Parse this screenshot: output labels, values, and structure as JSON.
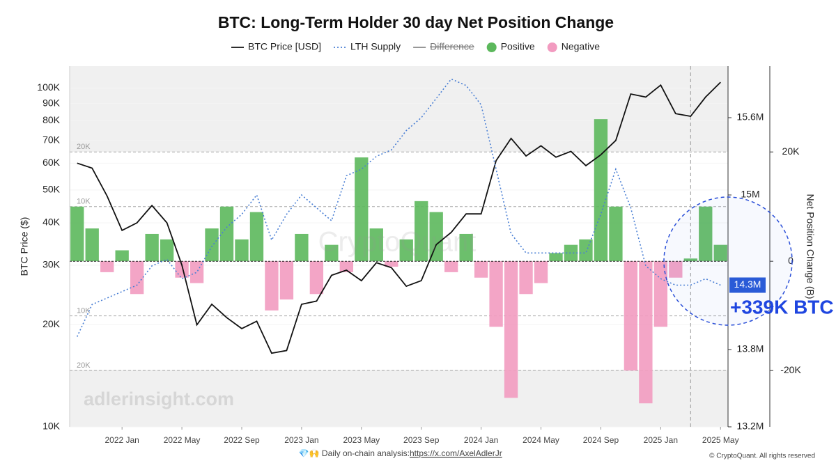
{
  "chart_data": {
    "type": "combo",
    "title": "BTC: Long-Term Holder 30 day Net Position Change",
    "y_label": "BTC Price ($)",
    "y3_label": "Net Position Change (B)",
    "x": [
      "2021-10",
      "2021-11",
      "2021-12",
      "2022-01",
      "2022-02",
      "2022-03",
      "2022-04",
      "2022-05",
      "2022-06",
      "2022-07",
      "2022-08",
      "2022-09",
      "2022-10",
      "2022-11",
      "2022-12",
      "2023-01",
      "2023-02",
      "2023-03",
      "2023-04",
      "2023-05",
      "2023-06",
      "2023-07",
      "2023-08",
      "2023-09",
      "2023-10",
      "2023-11",
      "2023-12",
      "2024-01",
      "2024-02",
      "2024-03",
      "2024-04",
      "2024-05",
      "2024-06",
      "2024-07",
      "2024-08",
      "2024-09",
      "2024-10",
      "2024-11",
      "2024-12",
      "2025-01",
      "2025-02",
      "2025-03",
      "2025-04",
      "2025-05"
    ],
    "xlim": [
      "2021-10",
      "2025-06"
    ],
    "xticks": [
      {
        "value": "2022-01",
        "label": "2022 Jan"
      },
      {
        "value": "2022-05",
        "label": "2022 May"
      },
      {
        "value": "2022-09",
        "label": "2022 Sep"
      },
      {
        "value": "2023-01",
        "label": "2023 Jan"
      },
      {
        "value": "2023-05",
        "label": "2023 May"
      },
      {
        "value": "2023-09",
        "label": "2023 Sep"
      },
      {
        "value": "2024-01",
        "label": "2024 Jan"
      },
      {
        "value": "2024-05",
        "label": "2024 May"
      },
      {
        "value": "2024-09",
        "label": "2024 Sep"
      },
      {
        "value": "2025-01",
        "label": "2025 Jan"
      },
      {
        "value": "2025-05",
        "label": "2025 May"
      }
    ],
    "y_log": true,
    "ylim": [
      10000,
      116000
    ],
    "yticks": [
      {
        "value": 10000,
        "label": "10K"
      },
      {
        "value": 20000,
        "label": "20K"
      },
      {
        "value": 30000,
        "label": "30K"
      },
      {
        "value": 40000,
        "label": "40K"
      },
      {
        "value": 50000,
        "label": "50K"
      },
      {
        "value": 60000,
        "label": "60K"
      },
      {
        "value": 70000,
        "label": "70K"
      },
      {
        "value": 80000,
        "label": "80K"
      },
      {
        "value": 90000,
        "label": "90K"
      },
      {
        "value": 100000,
        "label": "100K"
      }
    ],
    "y2lim": [
      13200000,
      16000000
    ],
    "y2ticks": [
      {
        "value": 13200000,
        "label": "13.2M"
      },
      {
        "value": 13800000,
        "label": "13.8M"
      },
      {
        "value": 15000000,
        "label": "15M"
      },
      {
        "value": 15600000,
        "label": "15.6M"
      }
    ],
    "y3lim": [
      -30300,
      35700
    ],
    "y3ticks": [
      {
        "value": -20000,
        "label": "-20K"
      },
      0,
      {
        "value": 20000,
        "label": "20K"
      }
    ],
    "y3_reference_lines": [
      {
        "value": 20000,
        "label": "20K"
      },
      {
        "value": 10000,
        "label": "10K"
      },
      {
        "value": -10000,
        "label": "10K"
      },
      {
        "value": -20000,
        "label": "20K"
      }
    ],
    "y2_current_label": {
      "value": 14300000,
      "label": "14.3M"
    },
    "vline_x": "2025-03",
    "series": [
      {
        "name": "BTC Price [USD]",
        "color": "#111111",
        "style": "line",
        "axis": "y",
        "values": [
          60000,
          58000,
          48000,
          38000,
          40000,
          45000,
          40000,
          30000,
          20000,
          23000,
          21000,
          19500,
          20500,
          16500,
          16800,
          23000,
          23500,
          28000,
          29000,
          27000,
          30500,
          29500,
          26000,
          27000,
          34500,
          37500,
          42500,
          42500,
          61000,
          71000,
          63000,
          67500,
          62500,
          65000,
          59000,
          63500,
          70000,
          96000,
          94000,
          102000,
          84000,
          82500,
          94000,
          104000
        ]
      },
      {
        "name": "LTH Supply",
        "color": "#4a7fd4",
        "style": "dotted",
        "axis": "y2",
        "values": [
          13900000,
          14150000,
          14200000,
          14250000,
          14300000,
          14450000,
          14500000,
          14350000,
          14400000,
          14600000,
          14750000,
          14850000,
          15000000,
          14650000,
          14850000,
          15000000,
          14900000,
          14800000,
          15150000,
          15200000,
          15300000,
          15350000,
          15500000,
          15600000,
          15750000,
          15900000,
          15850000,
          15700000,
          15200000,
          14700000,
          14550000,
          14550000,
          14550000,
          14550000,
          14550000,
          14850000,
          15200000,
          14900000,
          14450000,
          14350000,
          14300000,
          14300000,
          14350000,
          14300000
        ]
      },
      {
        "name": "Difference",
        "color": "#888888",
        "style": "hidden",
        "hidden": true
      },
      {
        "name": "Positive",
        "color": "#5cb85c",
        "style": "bar",
        "axis": "y3",
        "values": [
          10000,
          6000,
          null,
          2000,
          null,
          5000,
          4000,
          null,
          null,
          6000,
          10000,
          4000,
          9000,
          null,
          null,
          5000,
          null,
          3000,
          null,
          19000,
          6000,
          null,
          4000,
          11000,
          9000,
          null,
          5000,
          null,
          null,
          null,
          null,
          null,
          1500,
          3000,
          4000,
          26000,
          10000,
          null,
          null,
          null,
          null,
          500,
          10000,
          3000
        ]
      },
      {
        "name": "Negative",
        "color": "#f29bc0",
        "style": "bar",
        "axis": "y3",
        "values": [
          null,
          null,
          -2000,
          null,
          -6000,
          null,
          null,
          -3000,
          -4000,
          null,
          null,
          null,
          null,
          -9000,
          -7000,
          null,
          -6000,
          null,
          -2000,
          null,
          null,
          -1000,
          null,
          null,
          null,
          -2000,
          null,
          -3000,
          -12000,
          -25000,
          -6000,
          -4000,
          null,
          null,
          null,
          null,
          null,
          -20000,
          -26000,
          -12000,
          -3000,
          null,
          null,
          null
        ]
      }
    ],
    "annotation": "+339K BTC",
    "watermarks": [
      "adlerinsight.com",
      "CryptoQuant"
    ],
    "footer": {
      "prefix": "💎🙌 Daily on-chain analysis: ",
      "link": "https://x.com/AxelAdlerJr",
      "copyright": "© CryptoQuant. All rights reserved"
    }
  }
}
